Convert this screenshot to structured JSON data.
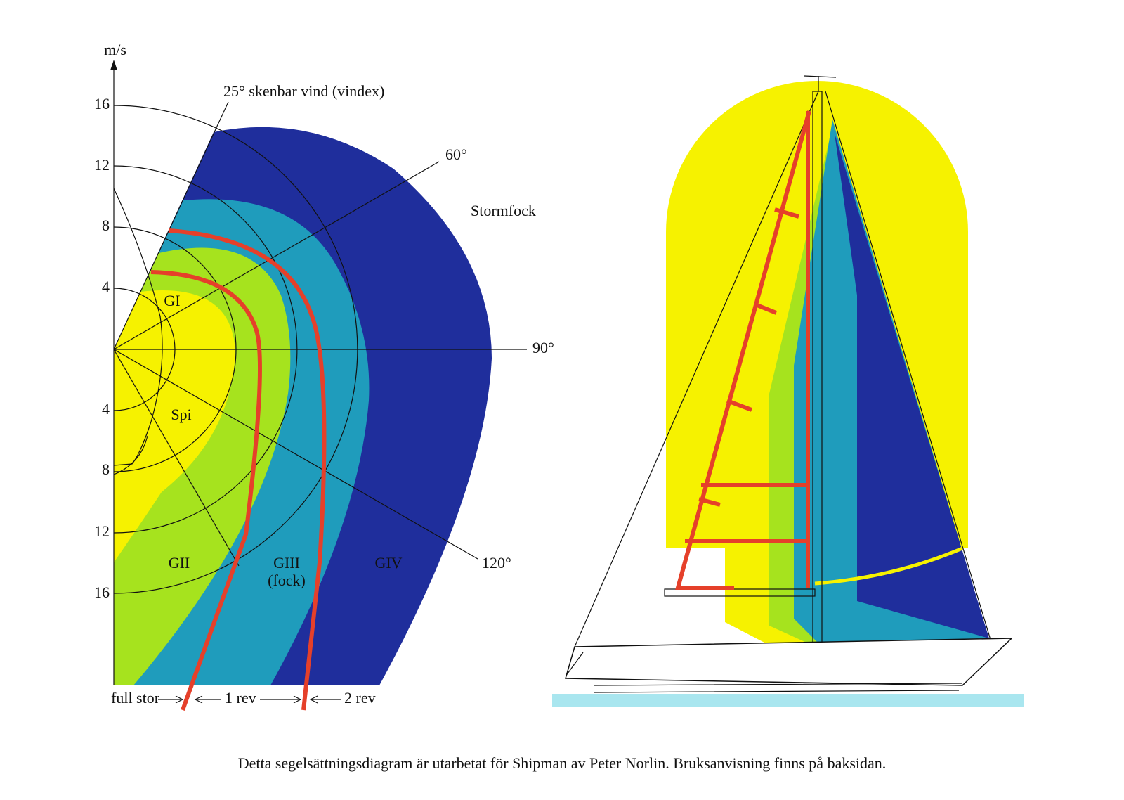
{
  "diagram": {
    "axis_unit": "m/s",
    "upper_ticks": [
      "16",
      "12",
      "8",
      "4"
    ],
    "lower_ticks": [
      "4",
      "8",
      "12",
      "16"
    ],
    "angle_labels": [
      "25° skenbar vind (vindex)",
      "60°",
      "90°",
      "120°"
    ],
    "zone_labels": [
      "GI",
      "Spi",
      "GII",
      "GIII",
      "(fock)",
      "GIV",
      "Stormfock"
    ],
    "reef_labels": [
      "full stor",
      "1 rev",
      "2 rev"
    ]
  },
  "caption": "Detta segelsättningsdiagram är utarbetat för Shipman av Peter Norlin. Bruksanvisning finns på baksidan."
}
